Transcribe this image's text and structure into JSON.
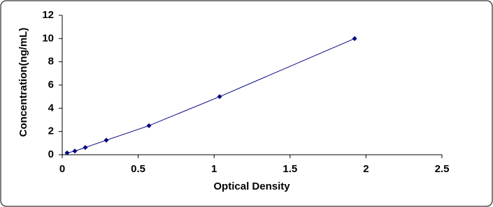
{
  "chart_data": {
    "type": "scatter-line",
    "x_label": "Optical Density",
    "y_label": "Concentration(ng/mL)",
    "x": [
      0.032,
      0.083,
      0.152,
      0.29,
      0.571,
      1.036,
      1.925
    ],
    "series": [
      {
        "color": "#000080",
        "values": [
          0.156,
          0.312,
          0.625,
          1.25,
          2.5,
          5,
          10
        ]
      }
    ],
    "xlim": [
      0,
      2.5
    ],
    "xticks": [
      0,
      0.5,
      1,
      1.5,
      2,
      2.5
    ],
    "ylim": [
      0,
      12
    ],
    "yticks": [
      0,
      2,
      4,
      6,
      8,
      10,
      12
    ],
    "grid": false
  }
}
